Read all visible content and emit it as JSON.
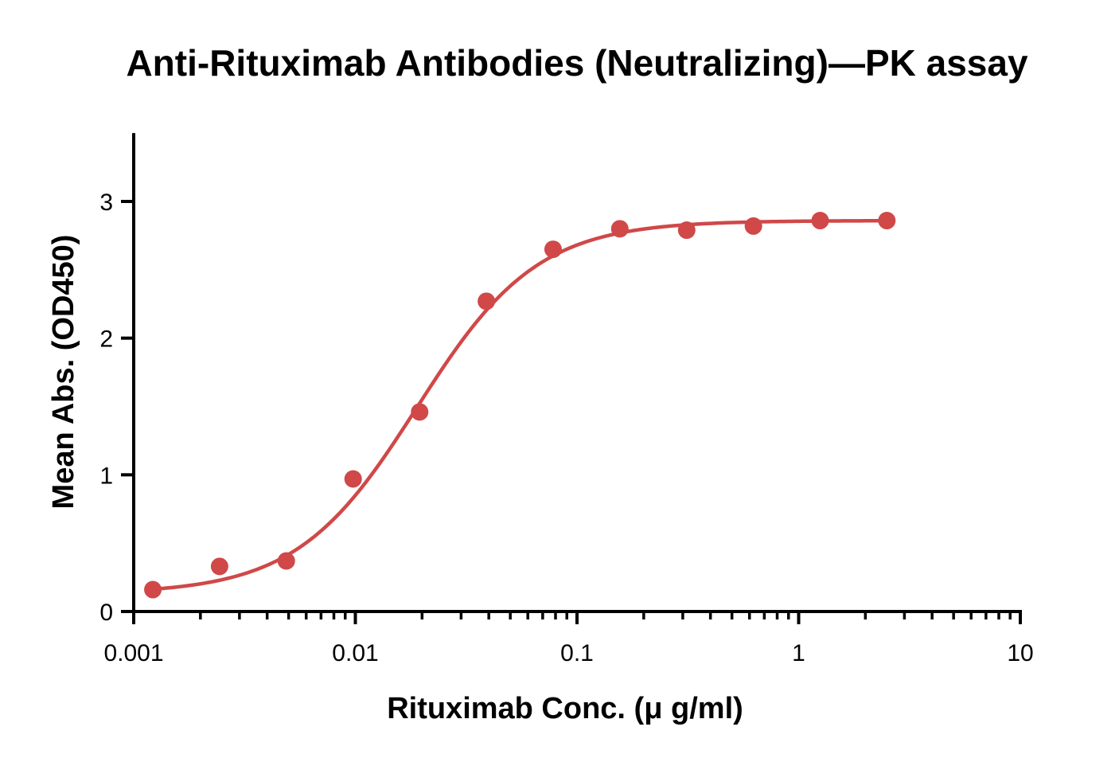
{
  "chart_data": {
    "type": "scatter",
    "title": "Anti-Rituximab Antibodies (Neutralizing)—PK assay",
    "xlabel": "Rituximab Conc. (μ g/ml)",
    "ylabel": "Mean Abs. (OD450)",
    "x_scale": "log",
    "xlim": [
      0.001,
      10
    ],
    "ylim": [
      0,
      3.5
    ],
    "x_ticks": [
      0.001,
      0.01,
      0.1,
      1,
      10
    ],
    "x_tick_labels": [
      "0.001",
      "0.01",
      "0.1",
      "1",
      "10"
    ],
    "y_ticks": [
      0,
      1,
      2,
      3
    ],
    "y_tick_labels": [
      "0",
      "1",
      "2",
      "3"
    ],
    "grid": false,
    "color": "#d04848",
    "series": [
      {
        "points": [
          {
            "x": 0.00122,
            "y": 0.16
          },
          {
            "x": 0.00244,
            "y": 0.33
          },
          {
            "x": 0.00488,
            "y": 0.37
          },
          {
            "x": 0.00977,
            "y": 0.97
          },
          {
            "x": 0.0195,
            "y": 1.46
          },
          {
            "x": 0.039,
            "y": 2.27
          },
          {
            "x": 0.078,
            "y": 2.65
          },
          {
            "x": 0.156,
            "y": 2.8
          },
          {
            "x": 0.3125,
            "y": 2.79
          },
          {
            "x": 0.625,
            "y": 2.82
          },
          {
            "x": 1.25,
            "y": 2.86
          },
          {
            "x": 2.5,
            "y": 2.86
          }
        ],
        "fit": {
          "model": "4PL",
          "bottom": 0.13,
          "top": 2.86,
          "ec50": 0.019,
          "hill": 1.6
        }
      }
    ]
  }
}
